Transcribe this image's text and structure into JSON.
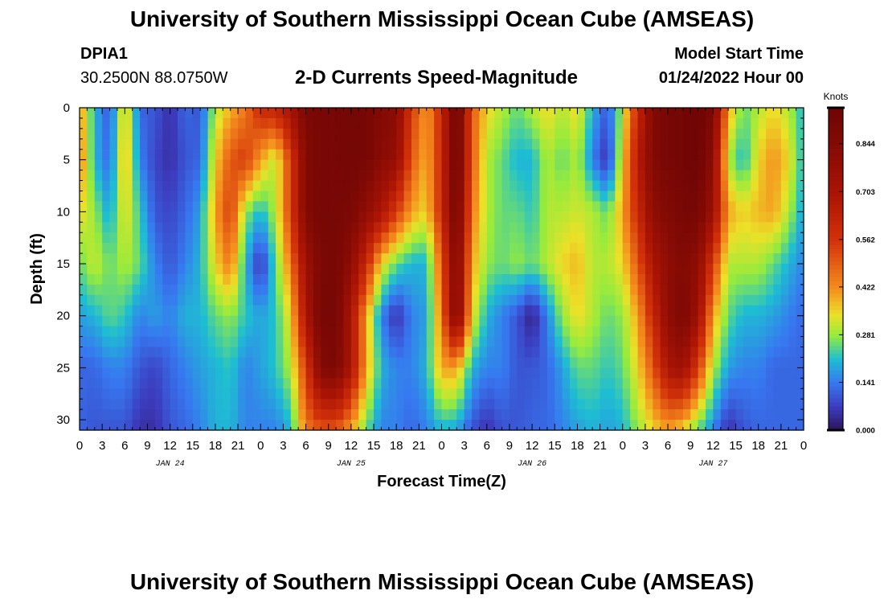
{
  "page_title": "University of Southern Mississippi Ocean Cube (AMSEAS)",
  "station": {
    "id": "DPIA1",
    "coords": "30.2500N  88.0750W"
  },
  "chart_title": "2-D Currents Speed-Magnitude",
  "model_start": {
    "label": "Model Start Time",
    "value": "01/24/2022 Hour 00"
  },
  "footer_title": "University of Southern Mississippi Ocean Cube (AMSEAS)",
  "chart_data": {
    "type": "heatmap",
    "title": "2-D Currents Speed-Magnitude",
    "xlabel": "Forecast Time(Z)",
    "ylabel": "Depth (ft)",
    "x_unit": "hours since 01/24/2022 00Z",
    "xlim": [
      0,
      96
    ],
    "ylim": [
      0,
      31
    ],
    "y_inverted": true,
    "x_tick_labels": [
      "0",
      "3",
      "6",
      "9",
      "12",
      "15",
      "18",
      "21",
      "0",
      "3",
      "6",
      "9",
      "12",
      "15",
      "18",
      "21",
      "0",
      "3",
      "6",
      "9",
      "12",
      "15",
      "18",
      "21",
      "0",
      "3",
      "6",
      "9",
      "12",
      "15",
      "18",
      "21",
      "0"
    ],
    "x_tick_values": [
      0,
      3,
      6,
      9,
      12,
      15,
      18,
      21,
      24,
      27,
      30,
      33,
      36,
      39,
      42,
      45,
      48,
      51,
      54,
      57,
      60,
      63,
      66,
      69,
      72,
      75,
      78,
      81,
      84,
      87,
      90,
      93,
      96
    ],
    "date_labels": [
      {
        "label": "JAN 24",
        "x": 12
      },
      {
        "label": "JAN 25",
        "x": 36
      },
      {
        "label": "JAN 26",
        "x": 60
      },
      {
        "label": "JAN 27",
        "x": 84
      }
    ],
    "y_tick_labels": [
      "0",
      "5",
      "10",
      "15",
      "20",
      "25",
      "30"
    ],
    "y_tick_values": [
      0,
      5,
      10,
      15,
      20,
      25,
      30
    ],
    "colorbar": {
      "label": "Knots",
      "min": 0.0,
      "max": 0.95,
      "tick_labels": [
        "0.000",
        "0.141",
        "0.281",
        "0.422",
        "0.562",
        "0.703",
        "0.844"
      ],
      "tick_values": [
        0.0,
        0.141,
        0.281,
        0.422,
        0.562,
        0.703,
        0.844
      ]
    },
    "x_nodes": [
      0,
      2,
      4,
      6,
      8,
      10,
      12,
      14,
      16,
      18,
      20,
      22,
      24,
      26,
      28,
      30,
      32,
      34,
      36,
      38,
      40,
      42,
      44,
      46,
      48,
      50,
      52,
      54,
      56,
      58,
      60,
      62,
      64,
      66,
      68,
      70,
      72,
      74,
      76,
      78,
      80,
      82,
      84,
      86,
      88,
      90,
      92,
      94,
      96
    ],
    "depth_nodes": [
      0,
      5,
      10,
      15,
      20,
      25,
      31
    ],
    "speed_knots": [
      [
        0.42,
        0.2,
        0.1,
        0.38,
        0.12,
        0.1,
        0.05,
        0.12,
        0.1,
        0.3,
        0.38,
        0.45,
        0.6,
        0.62,
        0.72,
        0.88,
        0.9,
        0.9,
        0.92,
        0.9,
        0.85,
        0.82,
        0.55,
        0.4,
        0.6,
        0.95,
        0.5,
        0.35,
        0.3,
        0.25,
        0.3,
        0.35,
        0.3,
        0.35,
        0.2,
        0.1,
        0.3,
        0.6,
        0.85,
        0.9,
        0.92,
        0.95,
        0.88,
        0.4,
        0.25,
        0.3,
        0.35,
        0.3,
        0.2
      ],
      [
        0.45,
        0.2,
        0.12,
        0.4,
        0.15,
        0.08,
        0.05,
        0.1,
        0.12,
        0.35,
        0.5,
        0.55,
        0.4,
        0.3,
        0.55,
        0.85,
        0.9,
        0.9,
        0.92,
        0.9,
        0.82,
        0.78,
        0.5,
        0.38,
        0.6,
        0.95,
        0.5,
        0.3,
        0.25,
        0.2,
        0.2,
        0.3,
        0.25,
        0.3,
        0.15,
        0.05,
        0.35,
        0.65,
        0.85,
        0.9,
        0.92,
        0.95,
        0.8,
        0.3,
        0.2,
        0.35,
        0.42,
        0.35,
        0.2
      ],
      [
        0.35,
        0.28,
        0.18,
        0.35,
        0.22,
        0.1,
        0.08,
        0.12,
        0.18,
        0.4,
        0.55,
        0.28,
        0.2,
        0.3,
        0.55,
        0.85,
        0.9,
        0.9,
        0.88,
        0.8,
        0.7,
        0.55,
        0.4,
        0.35,
        0.6,
        0.92,
        0.45,
        0.3,
        0.25,
        0.25,
        0.22,
        0.3,
        0.3,
        0.32,
        0.3,
        0.25,
        0.4,
        0.6,
        0.8,
        0.85,
        0.9,
        0.9,
        0.75,
        0.4,
        0.35,
        0.38,
        0.4,
        0.3,
        0.18
      ],
      [
        0.25,
        0.32,
        0.25,
        0.3,
        0.25,
        0.15,
        0.1,
        0.15,
        0.2,
        0.35,
        0.45,
        0.2,
        0.05,
        0.25,
        0.45,
        0.75,
        0.88,
        0.9,
        0.8,
        0.6,
        0.35,
        0.25,
        0.2,
        0.2,
        0.5,
        0.88,
        0.4,
        0.28,
        0.25,
        0.28,
        0.25,
        0.3,
        0.35,
        0.38,
        0.3,
        0.3,
        0.35,
        0.5,
        0.7,
        0.8,
        0.85,
        0.8,
        0.55,
        0.3,
        0.3,
        0.3,
        0.25,
        0.2,
        0.15
      ],
      [
        0.18,
        0.2,
        0.25,
        0.22,
        0.15,
        0.18,
        0.15,
        0.2,
        0.2,
        0.25,
        0.28,
        0.22,
        0.18,
        0.22,
        0.35,
        0.7,
        0.9,
        0.9,
        0.7,
        0.4,
        0.15,
        0.05,
        0.15,
        0.18,
        0.45,
        0.88,
        0.35,
        0.2,
        0.15,
        0.1,
        0.02,
        0.15,
        0.28,
        0.35,
        0.3,
        0.25,
        0.28,
        0.4,
        0.6,
        0.8,
        0.88,
        0.75,
        0.4,
        0.25,
        0.2,
        0.2,
        0.18,
        0.15,
        0.12
      ],
      [
        0.12,
        0.12,
        0.15,
        0.15,
        0.1,
        0.08,
        0.12,
        0.15,
        0.18,
        0.2,
        0.22,
        0.15,
        0.18,
        0.22,
        0.3,
        0.55,
        0.85,
        0.88,
        0.7,
        0.4,
        0.2,
        0.15,
        0.15,
        0.2,
        0.4,
        0.4,
        0.2,
        0.15,
        0.15,
        0.1,
        0.1,
        0.12,
        0.18,
        0.25,
        0.25,
        0.22,
        0.25,
        0.35,
        0.5,
        0.7,
        0.75,
        0.55,
        0.3,
        0.18,
        0.15,
        0.15,
        0.12,
        0.12,
        0.12
      ],
      [
        0.12,
        0.1,
        0.1,
        0.1,
        0.05,
        0.05,
        0.1,
        0.12,
        0.15,
        0.2,
        0.2,
        0.15,
        0.15,
        0.15,
        0.2,
        0.45,
        0.5,
        0.5,
        0.4,
        0.25,
        0.15,
        0.15,
        0.12,
        0.15,
        0.2,
        0.18,
        0.1,
        0.05,
        0.1,
        0.1,
        0.12,
        0.12,
        0.15,
        0.18,
        0.2,
        0.18,
        0.2,
        0.28,
        0.35,
        0.4,
        0.35,
        0.25,
        0.15,
        0.05,
        0.1,
        0.12,
        0.12,
        0.12,
        0.12
      ]
    ]
  }
}
